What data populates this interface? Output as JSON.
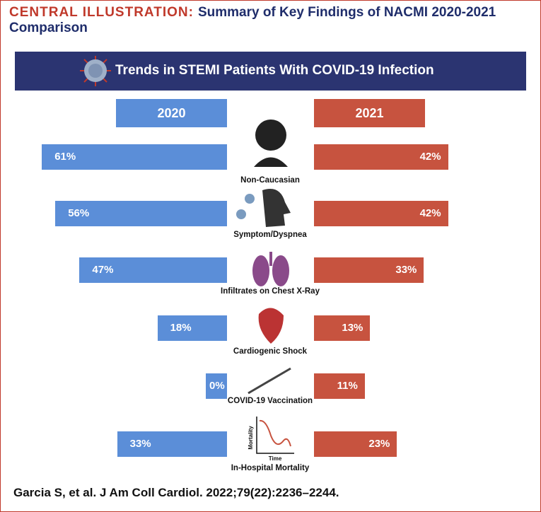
{
  "chart_data": {
    "type": "butterfly",
    "header": "CENTRAL ILLUSTRATION:",
    "title": "Summary of Key Findings of NACMI 2020-2021 Comparison",
    "subtitle": "Trends in STEMI Patients With COVID-19 Infection",
    "categories": [
      "Non-Caucasian",
      "Symptom/Dyspnea",
      "Infiltrates on Chest X-Ray",
      "Cardiogenic Shock",
      "COVID-19 Vaccination",
      "In-Hospital Mortality"
    ],
    "series": [
      {
        "name": "2020",
        "color": "#5b8ed8",
        "values": [
          61,
          56,
          47,
          18,
          0,
          33
        ],
        "value_labels": [
          "61%",
          "56%",
          "47%",
          "18%",
          "0%",
          "33%"
        ]
      },
      {
        "name": "2021",
        "color": "#c7533f",
        "values": [
          42,
          42,
          33,
          13,
          11,
          23
        ],
        "value_labels": [
          "42%",
          "42%",
          "33%",
          "13%",
          "11%",
          "23%"
        ]
      }
    ],
    "icon_labels": {
      "y": "Mortality",
      "x": "Time"
    },
    "citation": "Garcia S, et al. J Am Coll Cardiol. 2022;79(22):2236–2244."
  }
}
